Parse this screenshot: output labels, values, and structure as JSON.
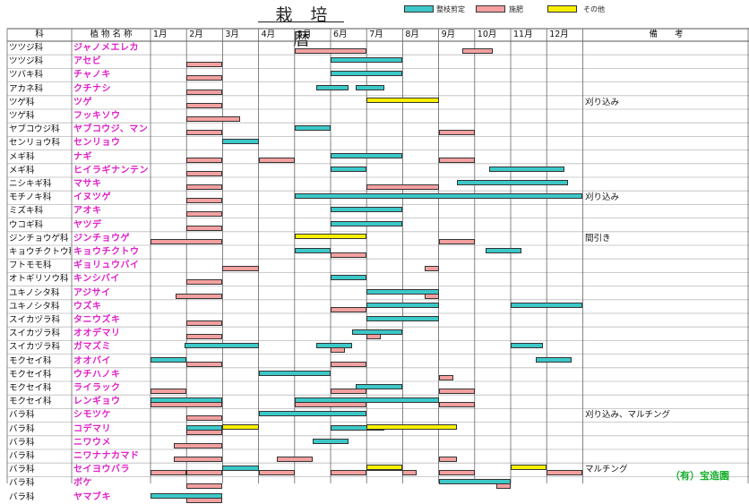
{
  "title": "栽 培 暦",
  "legend": [
    {
      "label": "整枝剪定",
      "color": "#3cc8c8"
    },
    {
      "label": "施肥",
      "color": "#f4a0a0"
    },
    {
      "label": "その他",
      "color": "#f8f000"
    }
  ],
  "headers": {
    "family": "科",
    "plant": "植 物 名 称",
    "months": [
      "1月",
      "2月",
      "3月",
      "4月",
      "5月",
      "6月",
      "7月",
      "8月",
      "9月",
      "10月",
      "11月",
      "12月"
    ],
    "notes": "備　　考"
  },
  "rows": [
    {
      "family": "ツツジ科",
      "plant": "ジャノメエレカ",
      "note": "",
      "bars": [
        {
          "type": "fertilize",
          "start": 4,
          "end": 6
        },
        {
          "type": "fertilize",
          "start": 8.65,
          "end": 9.5
        }
      ]
    },
    {
      "family": "ツツジ科",
      "plant": "アセビ",
      "note": "",
      "bars": [
        {
          "type": "fertilize",
          "start": 1,
          "end": 2
        },
        {
          "type": "prune",
          "start": 5,
          "end": 7
        }
      ]
    },
    {
      "family": "ツバキ科",
      "plant": "チャノキ",
      "note": "",
      "bars": [
        {
          "type": "fertilize",
          "start": 1,
          "end": 2
        },
        {
          "type": "prune",
          "start": 5,
          "end": 7
        }
      ]
    },
    {
      "family": "アカネ科",
      "plant": "クチナシ",
      "note": "",
      "bars": [
        {
          "type": "fertilize",
          "start": 1,
          "end": 2
        },
        {
          "type": "prune",
          "start": 4.6,
          "end": 5.5
        },
        {
          "type": "prune",
          "start": 5.7,
          "end": 6.5
        }
      ]
    },
    {
      "family": "ツゲ科",
      "plant": "ツゲ",
      "note": "刈り込み",
      "bars": [
        {
          "type": "fertilize",
          "start": 1,
          "end": 2
        },
        {
          "type": "other",
          "start": 6,
          "end": 8
        }
      ]
    },
    {
      "family": "ツゲ科",
      "plant": "フッキソウ",
      "note": "",
      "bars": [
        {
          "type": "fertilize",
          "start": 1,
          "end": 2.5
        }
      ]
    },
    {
      "family": "ヤブコウジ科",
      "plant": "ヤブコウジ、マンリョウ",
      "note": "",
      "bars": [
        {
          "type": "prune",
          "start": 4,
          "end": 5
        },
        {
          "type": "fertilize",
          "start": 1,
          "end": 2
        },
        {
          "type": "fertilize",
          "start": 8,
          "end": 9
        }
      ]
    },
    {
      "family": "センリョウ科",
      "plant": "センリョウ",
      "note": "",
      "bars": [
        {
          "type": "prune",
          "start": 2,
          "end": 3
        }
      ]
    },
    {
      "family": "メギ科",
      "plant": "ナギ",
      "note": "",
      "bars": [
        {
          "type": "fertilize",
          "start": 1,
          "end": 2
        },
        {
          "type": "fertilize",
          "start": 3,
          "end": 4
        },
        {
          "type": "prune",
          "start": 5,
          "end": 7
        },
        {
          "type": "fertilize",
          "start": 8,
          "end": 9
        }
      ]
    },
    {
      "family": "メギ科",
      "plant": "ヒイラギナンテン",
      "note": "",
      "bars": [
        {
          "type": "fertilize",
          "start": 1,
          "end": 2
        },
        {
          "type": "prune",
          "start": 5,
          "end": 6
        },
        {
          "type": "prune",
          "start": 9.4,
          "end": 11.5
        }
      ]
    },
    {
      "family": "ニシキギ科",
      "plant": "マサキ",
      "note": "",
      "bars": [
        {
          "type": "fertilize",
          "start": 1,
          "end": 2
        },
        {
          "type": "fertilize",
          "start": 6,
          "end": 8
        },
        {
          "type": "prune",
          "start": 8.5,
          "end": 11.6
        }
      ]
    },
    {
      "family": "モチノキ科",
      "plant": "イヌツゲ",
      "note": "刈り込み",
      "bars": [
        {
          "type": "fertilize",
          "start": 1,
          "end": 2
        },
        {
          "type": "prune",
          "start": 4,
          "end": 12
        }
      ]
    },
    {
      "family": "ミズキ科",
      "plant": "アオキ",
      "note": "",
      "bars": [
        {
          "type": "fertilize",
          "start": 1,
          "end": 2
        },
        {
          "type": "prune",
          "start": 5,
          "end": 7
        }
      ]
    },
    {
      "family": "ウコギ科",
      "plant": "ヤツデ",
      "note": "",
      "bars": [
        {
          "type": "fertilize",
          "start": 1,
          "end": 2
        },
        {
          "type": "prune",
          "start": 5,
          "end": 7
        }
      ]
    },
    {
      "family": "ジンチョウゲ科",
      "plant": "ジンチョウゲ",
      "note": "間引き",
      "bars": [
        {
          "type": "fertilize",
          "start": 0,
          "end": 2
        },
        {
          "type": "other",
          "start": 4,
          "end": 6
        },
        {
          "type": "fertilize",
          "start": 8,
          "end": 9
        }
      ]
    },
    {
      "family": "キョウチクトウ科",
      "plant": "キョウチクトウ",
      "note": "",
      "bars": [
        {
          "type": "prune",
          "start": 4,
          "end": 5
        },
        {
          "type": "fertilize",
          "start": 5,
          "end": 6
        },
        {
          "type": "prune",
          "start": 9.3,
          "end": 10.3
        }
      ]
    },
    {
      "family": "フトモモ科",
      "plant": "ギョリュウバイ",
      "note": "",
      "bars": [
        {
          "type": "fertilize",
          "start": 2,
          "end": 3
        },
        {
          "type": "fertilize",
          "start": 7.6,
          "end": 8
        }
      ]
    },
    {
      "family": "オトギリソウ科",
      "plant": "キンシバイ",
      "note": "",
      "bars": [
        {
          "type": "fertilize",
          "start": 1,
          "end": 2
        },
        {
          "type": "prune",
          "start": 5,
          "end": 6
        }
      ]
    },
    {
      "family": "ユキノシタ科",
      "plant": "アジサイ",
      "note": "",
      "bars": [
        {
          "type": "fertilize",
          "start": 0.7,
          "end": 2
        },
        {
          "type": "prune",
          "start": 6,
          "end": 8
        },
        {
          "type": "fertilize",
          "start": 7.6,
          "end": 8
        }
      ]
    },
    {
      "family": "ユキノシタ科",
      "plant": "ウズキ",
      "note": "",
      "bars": [
        {
          "type": "fertilize",
          "start": 5,
          "end": 6
        },
        {
          "type": "prune",
          "start": 6,
          "end": 8
        },
        {
          "type": "prune",
          "start": 10,
          "end": 12
        }
      ]
    },
    {
      "family": "スイカヅラ科",
      "plant": "タニウズキ",
      "note": "",
      "bars": [
        {
          "type": "fertilize",
          "start": 1,
          "end": 2
        },
        {
          "type": "prune",
          "start": 6,
          "end": 8
        }
      ]
    },
    {
      "family": "スイカヅラ科",
      "plant": "オオデマリ",
      "note": "",
      "bars": [
        {
          "type": "fertilize",
          "start": 1,
          "end": 2
        },
        {
          "type": "prune",
          "start": 5.6,
          "end": 7
        },
        {
          "type": "fertilize",
          "start": 6,
          "end": 6.4
        }
      ]
    },
    {
      "family": "スイカヅラ科",
      "plant": "ガマズミ",
      "note": "",
      "bars": [
        {
          "type": "prune",
          "start": 0.95,
          "end": 3
        },
        {
          "type": "prune",
          "start": 4.6,
          "end": 5.6
        },
        {
          "type": "fertilize",
          "start": 5,
          "end": 5.4
        },
        {
          "type": "prune",
          "start": 10,
          "end": 10.9
        }
      ]
    },
    {
      "family": "モクセイ科",
      "plant": "オオバイ",
      "note": "",
      "bars": [
        {
          "type": "prune",
          "start": 0,
          "end": 1
        },
        {
          "type": "fertilize",
          "start": 1,
          "end": 2
        },
        {
          "type": "fertilize",
          "start": 5,
          "end": 6
        },
        {
          "type": "prune",
          "start": 10.7,
          "end": 11.7
        }
      ]
    },
    {
      "family": "モクセイ科",
      "plant": "ウチハノキ",
      "note": "",
      "bars": [
        {
          "type": "prune",
          "start": 3,
          "end": 5
        },
        {
          "type": "fertilize",
          "start": 8,
          "end": 8.4
        }
      ]
    },
    {
      "family": "モクセイ科",
      "plant": "ライラック",
      "note": "",
      "bars": [
        {
          "type": "fertilize",
          "start": 0,
          "end": 1
        },
        {
          "type": "fertilize",
          "start": 5,
          "end": 6
        },
        {
          "type": "prune",
          "start": 5.7,
          "end": 7
        },
        {
          "type": "fertilize",
          "start": 8,
          "end": 9
        }
      ]
    },
    {
      "family": "モクセイ科",
      "plant": "レンギョウ",
      "note": "",
      "bars": [
        {
          "type": "prune",
          "start": 0,
          "end": 2
        },
        {
          "type": "fertilize",
          "start": 0,
          "end": 2
        },
        {
          "type": "prune",
          "start": 4,
          "end": 8
        },
        {
          "type": "fertilize",
          "start": 4,
          "end": 6
        },
        {
          "type": "fertilize",
          "start": 8,
          "end": 9
        }
      ]
    },
    {
      "family": "バラ科",
      "plant": "シモツケ",
      "note": "刈り込み、マルチング",
      "bars": [
        {
          "type": "fertilize",
          "start": 1,
          "end": 2
        },
        {
          "type": "prune",
          "start": 3,
          "end": 6
        }
      ]
    },
    {
      "family": "バラ科",
      "plant": "コデマリ",
      "note": "",
      "bars": [
        {
          "type": "prune",
          "start": 1,
          "end": 2
        },
        {
          "type": "fertilize",
          "start": 1,
          "end": 2
        },
        {
          "type": "other",
          "start": 2,
          "end": 3
        },
        {
          "type": "prune",
          "start": 5,
          "end": 6.5
        },
        {
          "type": "other",
          "start": 6,
          "end": 8.5
        }
      ]
    },
    {
      "family": "バラ科",
      "plant": "ニワウメ",
      "note": "",
      "bars": [
        {
          "type": "fertilize",
          "start": 0.65,
          "end": 2
        },
        {
          "type": "prune",
          "start": 4.5,
          "end": 5.5
        }
      ]
    },
    {
      "family": "バラ科",
      "plant": "ニワナナカマド",
      "note": "",
      "bars": [
        {
          "type": "fertilize",
          "start": 0.65,
          "end": 2
        },
        {
          "type": "fertilize",
          "start": 3.5,
          "end": 4.5
        },
        {
          "type": "fertilize",
          "start": 8,
          "end": 8.5
        }
      ]
    },
    {
      "family": "バラ科",
      "plant": "セイヨウバラ",
      "note": "マルチング",
      "bars": [
        {
          "type": "prune",
          "start": 2,
          "end": 3
        },
        {
          "type": "prune",
          "start": 6,
          "end": 7
        },
        {
          "type": "other",
          "start": 6,
          "end": 7
        },
        {
          "type": "fertilize",
          "start": 1,
          "end": 2
        },
        {
          "type": "fertilize",
          "start": 3,
          "end": 4
        },
        {
          "type": "fertilize",
          "start": 5,
          "end": 6
        },
        {
          "type": "fertilize",
          "start": 7,
          "end": 7.4
        },
        {
          "type": "fertilize",
          "start": 8,
          "end": 9
        },
        {
          "type": "other",
          "start": 10,
          "end": 11
        },
        {
          "type": "fertilize",
          "start": 11,
          "end": 12
        },
        {
          "type": "fertilize",
          "start": 0,
          "end": 1
        }
      ]
    },
    {
      "family": "バラ科",
      "plant": "ボケ",
      "note": "",
      "bars": [
        {
          "type": "fertilize",
          "start": 1,
          "end": 2
        },
        {
          "type": "prune",
          "start": 8,
          "end": 10
        },
        {
          "type": "fertilize",
          "start": 9.6,
          "end": 10
        }
      ]
    },
    {
      "family": "バラ科",
      "plant": "ヤマブキ",
      "note": "",
      "bars": [
        {
          "type": "prune",
          "start": 0,
          "end": 2
        },
        {
          "type": "fertilize",
          "start": 1,
          "end": 2
        }
      ]
    }
  ],
  "footer": "（有）宝造園"
}
